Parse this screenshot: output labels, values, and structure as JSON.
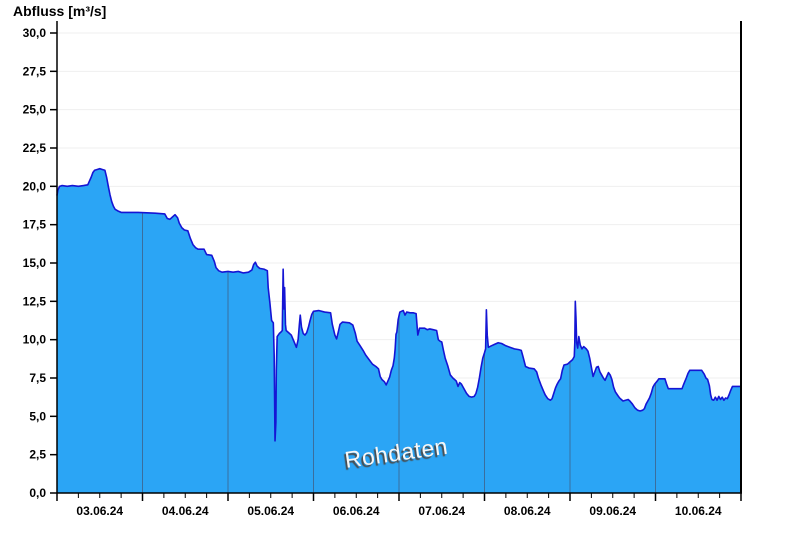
{
  "page": {
    "background": "#ffffff"
  },
  "chart_data": {
    "type": "area",
    "title": "Abfluss [m³/s]",
    "watermark": "Rohdaten",
    "ylabel": "Abfluss [m³/s]",
    "xlabel": "",
    "legend": "none",
    "grid": "horizontal-light",
    "ylim": [
      0,
      30.8
    ],
    "x_axis": {
      "labels": [
        "03.06.24",
        "04.06.24",
        "05.06.24",
        "06.06.24",
        "07.06.24",
        "08.06.24",
        "09.06.24",
        "10.06.24"
      ],
      "days": 8,
      "minor_ticks_per_day": 3,
      "minor_tick_interval_hours": 6
    },
    "y_axis": {
      "unit": "m³/s",
      "tick_interval": 2.5,
      "ticks": [
        {
          "value": 0,
          "label": "0,0"
        },
        {
          "value": 2.5,
          "label": "2,5"
        },
        {
          "value": 5,
          "label": "5,0"
        },
        {
          "value": 7.5,
          "label": "7,5"
        },
        {
          "value": 10,
          "label": "10,0"
        },
        {
          "value": 12.5,
          "label": "12,5"
        },
        {
          "value": 15,
          "label": "15,0"
        },
        {
          "value": 17.5,
          "label": "17,5"
        },
        {
          "value": 20,
          "label": "20,0"
        },
        {
          "value": 22.5,
          "label": "22,5"
        },
        {
          "value": 25,
          "label": "25,0"
        },
        {
          "value": 27.5,
          "label": "27,5"
        },
        {
          "value": 30,
          "label": "30,0"
        }
      ]
    },
    "colors": {
      "fill": "#2BA5F5",
      "line": "#1515D4",
      "day_line": "#3A6E9E",
      "grid": "#EFEFEF",
      "axis": "#000000",
      "text": "#000000",
      "watermark_fill": "#F7F7F7",
      "watermark_shadow": "#4A4A4A"
    },
    "series": [
      {
        "name": "Abfluss Rohdaten",
        "x_unit": "days_since_2024-06-03",
        "y_unit": "m³/s",
        "points": [
          [
            0,
            19.4
          ],
          [
            0.01,
            19.75
          ],
          [
            0.03,
            20.0
          ],
          [
            0.06,
            20.05
          ],
          [
            0.12,
            20.0
          ],
          [
            0.18,
            20.05
          ],
          [
            0.25,
            20.0
          ],
          [
            0.31,
            20.05
          ],
          [
            0.36,
            20.1
          ],
          [
            0.38,
            20.35
          ],
          [
            0.4,
            20.6
          ],
          [
            0.42,
            20.9
          ],
          [
            0.44,
            21.05
          ],
          [
            0.47,
            21.1
          ],
          [
            0.5,
            21.15
          ],
          [
            0.53,
            21.1
          ],
          [
            0.56,
            21.05
          ],
          [
            0.58,
            20.6
          ],
          [
            0.6,
            20.0
          ],
          [
            0.62,
            19.45
          ],
          [
            0.64,
            19.0
          ],
          [
            0.66,
            18.7
          ],
          [
            0.68,
            18.5
          ],
          [
            0.71,
            18.4
          ],
          [
            0.75,
            18.3
          ],
          [
            0.95,
            18.3
          ],
          [
            1.15,
            18.25
          ],
          [
            1.26,
            18.2
          ],
          [
            1.29,
            17.9
          ],
          [
            1.32,
            17.85
          ],
          [
            1.35,
            18.0
          ],
          [
            1.38,
            18.15
          ],
          [
            1.41,
            17.95
          ],
          [
            1.43,
            17.6
          ],
          [
            1.46,
            17.3
          ],
          [
            1.49,
            17.15
          ],
          [
            1.53,
            17.1
          ],
          [
            1.56,
            16.6
          ],
          [
            1.59,
            16.2
          ],
          [
            1.62,
            16.0
          ],
          [
            1.65,
            15.9
          ],
          [
            1.72,
            15.9
          ],
          [
            1.75,
            15.55
          ],
          [
            1.81,
            15.5
          ],
          [
            1.84,
            15.1
          ],
          [
            1.86,
            14.7
          ],
          [
            1.89,
            14.5
          ],
          [
            1.93,
            14.4
          ],
          [
            2.0,
            14.45
          ],
          [
            2.06,
            14.4
          ],
          [
            2.12,
            14.45
          ],
          [
            2.18,
            14.35
          ],
          [
            2.24,
            14.4
          ],
          [
            2.28,
            14.55
          ],
          [
            2.3,
            14.9
          ],
          [
            2.32,
            15.05
          ],
          [
            2.34,
            14.8
          ],
          [
            2.37,
            14.65
          ],
          [
            2.42,
            14.6
          ],
          [
            2.46,
            14.5
          ],
          [
            2.47,
            13.4
          ],
          [
            2.49,
            12.4
          ],
          [
            2.51,
            11.25
          ],
          [
            2.53,
            11.1
          ],
          [
            2.54,
            9.0
          ],
          [
            2.55,
            3.4
          ],
          [
            2.56,
            4.6
          ],
          [
            2.565,
            8.0
          ],
          [
            2.575,
            10.2
          ],
          [
            2.6,
            10.4
          ],
          [
            2.62,
            10.5
          ],
          [
            2.635,
            10.6
          ],
          [
            2.645,
            14.6
          ],
          [
            2.655,
            12.0
          ],
          [
            2.662,
            13.4
          ],
          [
            2.672,
            11.0
          ],
          [
            2.68,
            10.6
          ],
          [
            2.71,
            10.45
          ],
          [
            2.74,
            10.3
          ],
          [
            2.77,
            9.9
          ],
          [
            2.8,
            9.5
          ],
          [
            2.82,
            10.0
          ],
          [
            2.835,
            11.0
          ],
          [
            2.845,
            11.6
          ],
          [
            2.86,
            10.8
          ],
          [
            2.88,
            10.4
          ],
          [
            2.9,
            10.3
          ],
          [
            2.92,
            10.45
          ],
          [
            2.94,
            10.8
          ],
          [
            2.96,
            11.25
          ],
          [
            2.98,
            11.65
          ],
          [
            3.0,
            11.85
          ],
          [
            3.06,
            11.9
          ],
          [
            3.13,
            11.8
          ],
          [
            3.2,
            11.75
          ],
          [
            3.22,
            11.0
          ],
          [
            3.25,
            10.3
          ],
          [
            3.27,
            10.05
          ],
          [
            3.29,
            10.5
          ],
          [
            3.31,
            11.0
          ],
          [
            3.34,
            11.15
          ],
          [
            3.42,
            11.1
          ],
          [
            3.46,
            10.95
          ],
          [
            3.49,
            10.4
          ],
          [
            3.51,
            9.9
          ],
          [
            3.54,
            9.65
          ],
          [
            3.58,
            9.3
          ],
          [
            3.61,
            9.0
          ],
          [
            3.65,
            8.7
          ],
          [
            3.69,
            8.4
          ],
          [
            3.73,
            8.25
          ],
          [
            3.76,
            8.1
          ],
          [
            3.78,
            7.6
          ],
          [
            3.8,
            7.4
          ],
          [
            3.83,
            7.25
          ],
          [
            3.85,
            7.05
          ],
          [
            3.87,
            7.3
          ],
          [
            3.89,
            7.55
          ],
          [
            3.91,
            8.0
          ],
          [
            3.93,
            8.3
          ],
          [
            3.945,
            8.8
          ],
          [
            3.955,
            9.4
          ],
          [
            3.965,
            10.35
          ],
          [
            3.975,
            10.5
          ],
          [
            3.99,
            11.3
          ],
          [
            4.01,
            11.8
          ],
          [
            4.05,
            11.9
          ],
          [
            4.07,
            11.6
          ],
          [
            4.09,
            11.8
          ],
          [
            4.13,
            11.75
          ],
          [
            4.17,
            11.75
          ],
          [
            4.2,
            11.7
          ],
          [
            4.22,
            10.3
          ],
          [
            4.24,
            10.75
          ],
          [
            4.3,
            10.75
          ],
          [
            4.33,
            10.65
          ],
          [
            4.36,
            10.7
          ],
          [
            4.4,
            10.65
          ],
          [
            4.44,
            10.6
          ],
          [
            4.46,
            10.0
          ],
          [
            4.48,
            9.9
          ],
          [
            4.5,
            9.85
          ],
          [
            4.52,
            9.3
          ],
          [
            4.54,
            8.8
          ],
          [
            4.57,
            8.3
          ],
          [
            4.6,
            7.7
          ],
          [
            4.63,
            7.5
          ],
          [
            4.65,
            7.4
          ],
          [
            4.67,
            7.3
          ],
          [
            4.69,
            6.95
          ],
          [
            4.71,
            7.2
          ],
          [
            4.73,
            7.1
          ],
          [
            4.76,
            6.8
          ],
          [
            4.79,
            6.5
          ],
          [
            4.82,
            6.3
          ],
          [
            4.85,
            6.25
          ],
          [
            4.88,
            6.3
          ],
          [
            4.9,
            6.5
          ],
          [
            4.92,
            6.9
          ],
          [
            4.94,
            7.5
          ],
          [
            4.96,
            8.2
          ],
          [
            4.98,
            8.8
          ],
          [
            5.0,
            9.15
          ],
          [
            5.013,
            9.4
          ],
          [
            5.022,
            11.95
          ],
          [
            5.032,
            10.3
          ],
          [
            5.045,
            9.5
          ],
          [
            5.08,
            9.6
          ],
          [
            5.12,
            9.7
          ],
          [
            5.16,
            9.8
          ],
          [
            5.2,
            9.75
          ],
          [
            5.25,
            9.6
          ],
          [
            5.3,
            9.5
          ],
          [
            5.35,
            9.4
          ],
          [
            5.4,
            9.35
          ],
          [
            5.43,
            9.3
          ],
          [
            5.45,
            8.9
          ],
          [
            5.48,
            8.25
          ],
          [
            5.52,
            8.15
          ],
          [
            5.58,
            8.1
          ],
          [
            5.61,
            7.9
          ],
          [
            5.63,
            7.5
          ],
          [
            5.66,
            7.05
          ],
          [
            5.69,
            6.65
          ],
          [
            5.71,
            6.4
          ],
          [
            5.74,
            6.15
          ],
          [
            5.77,
            6.05
          ],
          [
            5.79,
            6.15
          ],
          [
            5.81,
            6.5
          ],
          [
            5.83,
            6.85
          ],
          [
            5.85,
            7.1
          ],
          [
            5.87,
            7.3
          ],
          [
            5.89,
            7.45
          ],
          [
            5.91,
            8.0
          ],
          [
            5.93,
            8.35
          ],
          [
            5.97,
            8.4
          ],
          [
            6.0,
            8.55
          ],
          [
            6.03,
            8.7
          ],
          [
            6.05,
            8.9
          ],
          [
            6.056,
            9.8
          ],
          [
            6.062,
            12.5
          ],
          [
            6.07,
            11.4
          ],
          [
            6.078,
            9.8
          ],
          [
            6.09,
            9.45
          ],
          [
            6.103,
            10.2
          ],
          [
            6.12,
            9.65
          ],
          [
            6.14,
            9.4
          ],
          [
            6.16,
            9.55
          ],
          [
            6.19,
            9.4
          ],
          [
            6.21,
            9.25
          ],
          [
            6.23,
            8.8
          ],
          [
            6.25,
            8.2
          ],
          [
            6.27,
            7.6
          ],
          [
            6.29,
            7.9
          ],
          [
            6.31,
            8.2
          ],
          [
            6.33,
            8.25
          ],
          [
            6.35,
            7.9
          ],
          [
            6.37,
            7.7
          ],
          [
            6.39,
            7.5
          ],
          [
            6.41,
            7.35
          ],
          [
            6.43,
            7.6
          ],
          [
            6.45,
            7.85
          ],
          [
            6.47,
            7.7
          ],
          [
            6.49,
            7.4
          ],
          [
            6.51,
            6.9
          ],
          [
            6.53,
            6.6
          ],
          [
            6.56,
            6.35
          ],
          [
            6.58,
            6.2
          ],
          [
            6.6,
            6.1
          ],
          [
            6.62,
            6.0
          ],
          [
            6.65,
            6.05
          ],
          [
            6.68,
            6.1
          ],
          [
            6.7,
            6.0
          ],
          [
            6.73,
            5.8
          ],
          [
            6.76,
            5.55
          ],
          [
            6.79,
            5.4
          ],
          [
            6.82,
            5.35
          ],
          [
            6.85,
            5.4
          ],
          [
            6.87,
            5.5
          ],
          [
            6.89,
            5.8
          ],
          [
            6.91,
            6.0
          ],
          [
            6.93,
            6.2
          ],
          [
            6.95,
            6.5
          ],
          [
            6.97,
            6.9
          ],
          [
            6.99,
            7.1
          ],
          [
            7.02,
            7.3
          ],
          [
            7.04,
            7.45
          ],
          [
            7.11,
            7.45
          ],
          [
            7.13,
            7.1
          ],
          [
            7.15,
            6.8
          ],
          [
            7.2,
            6.8
          ],
          [
            7.31,
            6.8
          ],
          [
            7.33,
            7.1
          ],
          [
            7.36,
            7.5
          ],
          [
            7.38,
            7.8
          ],
          [
            7.4,
            8.0
          ],
          [
            7.54,
            8.0
          ],
          [
            7.57,
            7.75
          ],
          [
            7.59,
            7.5
          ],
          [
            7.61,
            7.4
          ],
          [
            7.63,
            7.0
          ],
          [
            7.645,
            6.4
          ],
          [
            7.66,
            6.1
          ],
          [
            7.68,
            6.05
          ],
          [
            7.7,
            6.25
          ],
          [
            7.72,
            6.05
          ],
          [
            7.74,
            6.3
          ],
          [
            7.76,
            6.1
          ],
          [
            7.78,
            6.25
          ],
          [
            7.8,
            6.05
          ],
          [
            7.82,
            6.2
          ],
          [
            7.84,
            6.15
          ],
          [
            7.86,
            6.4
          ],
          [
            7.88,
            6.7
          ],
          [
            7.9,
            6.95
          ],
          [
            7.99,
            6.95
          ],
          [
            8.0,
            6.9
          ]
        ]
      }
    ]
  }
}
